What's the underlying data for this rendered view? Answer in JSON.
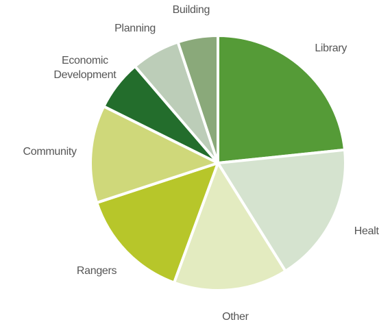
{
  "chart_data": {
    "type": "pie",
    "categories": [
      "Library",
      "Health",
      "Other",
      "Rangers",
      "Community",
      "Economic Development",
      "Planning",
      "Building"
    ],
    "values": [
      23.4,
      17.8,
      14.5,
      14.4,
      12.4,
      6.4,
      6.2,
      5.1
    ],
    "colors": [
      "#559b37",
      "#d5e3cf",
      "#e3ebc0",
      "#b7c62a",
      "#cfd87a",
      "#236d2c",
      "#bccdb8",
      "#8aa97a"
    ]
  }
}
